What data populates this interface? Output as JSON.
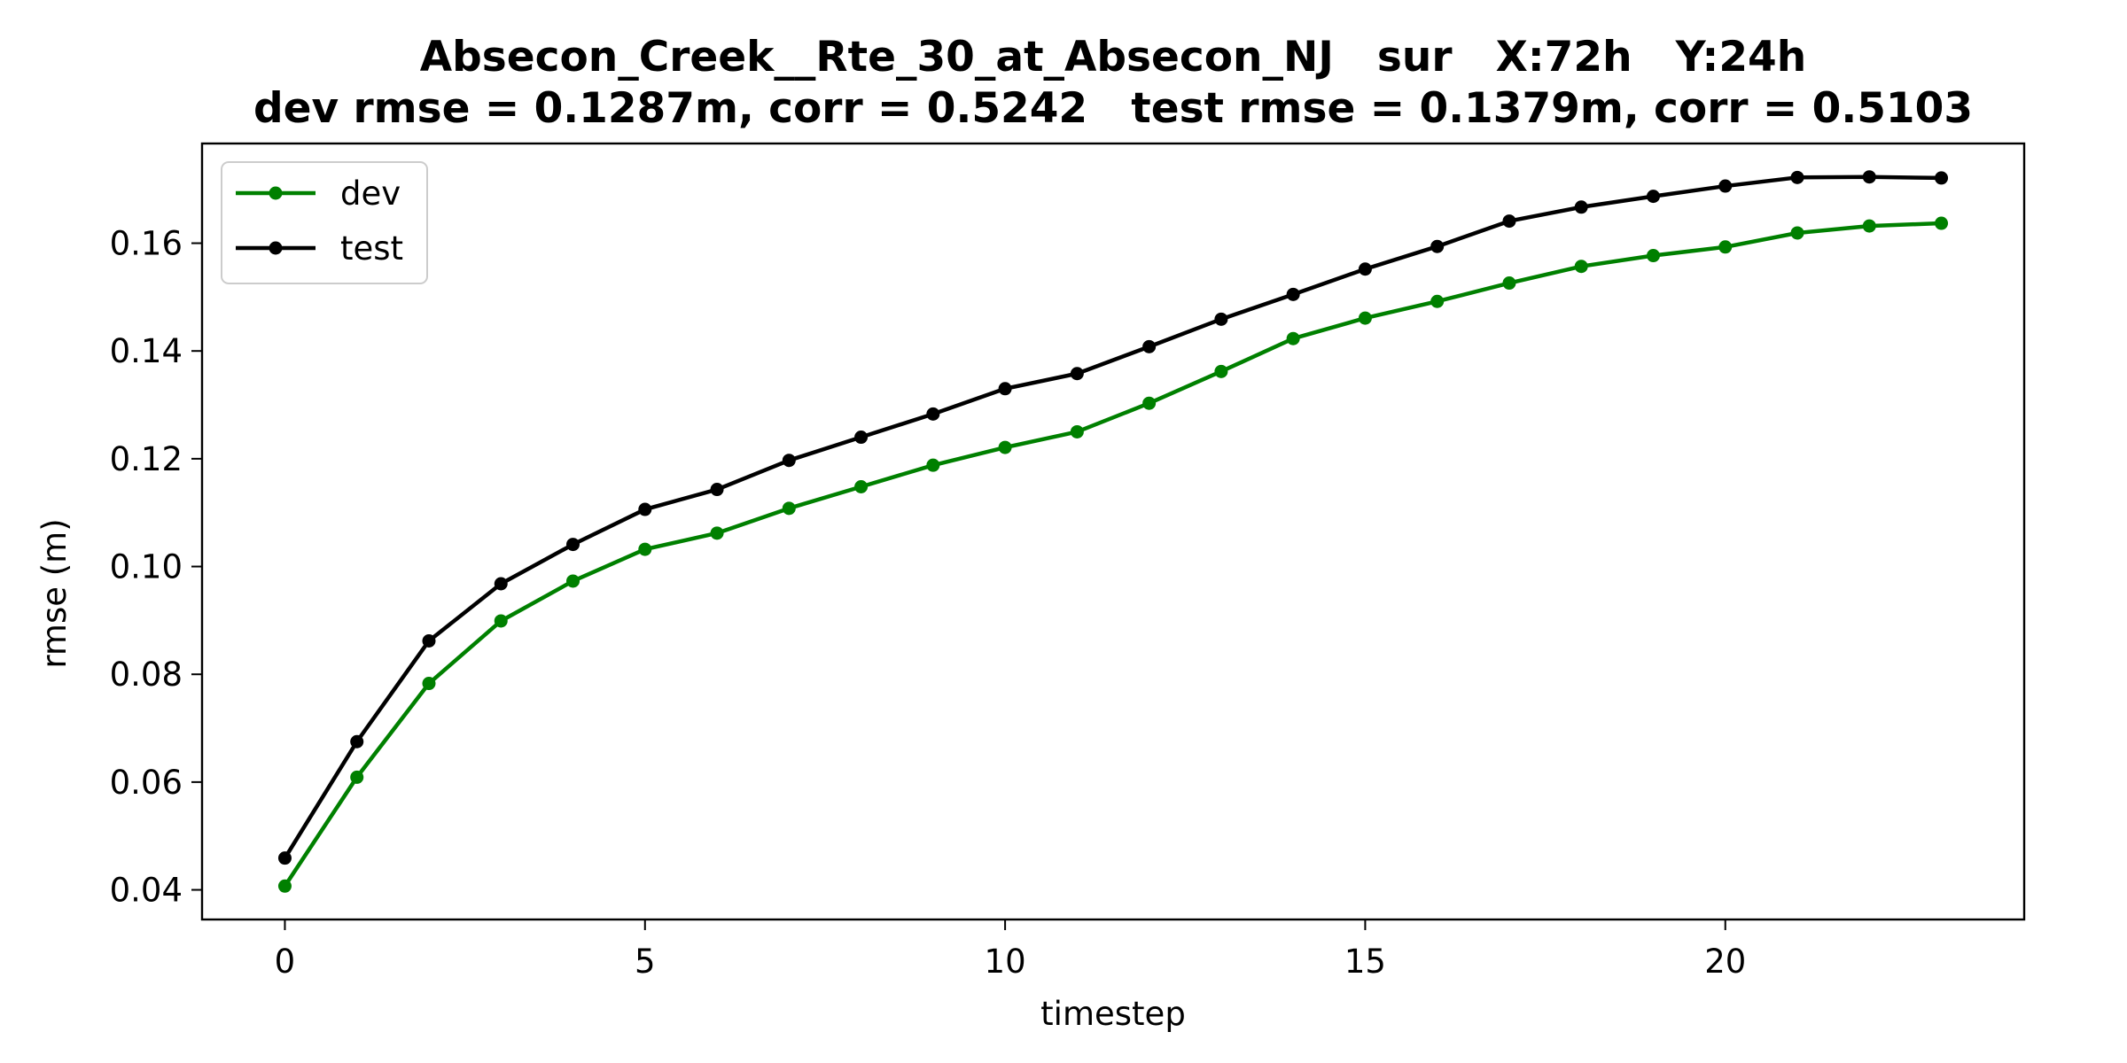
{
  "chart_data": {
    "type": "line",
    "title_line1": "Absecon_Creek__Rte_30_at_Absecon_NJ   sur   X:72h   Y:24h",
    "title_line2": "dev rmse = 0.1287m, corr = 0.5242   test rmse = 0.1379m, corr = 0.5103",
    "xlabel": "timestep",
    "ylabel": "rmse (m)",
    "xlim": [
      -1.15,
      24.15
    ],
    "ylim": [
      0.0345,
      0.1785
    ],
    "xticks": [
      0,
      5,
      10,
      15,
      20
    ],
    "xtick_labels": [
      "0",
      "5",
      "10",
      "15",
      "20"
    ],
    "yticks": [
      0.04,
      0.06,
      0.08,
      0.1,
      0.12,
      0.14,
      0.16
    ],
    "ytick_labels": [
      "0.04",
      "0.06",
      "0.08",
      "0.10",
      "0.12",
      "0.14",
      "0.16"
    ],
    "legend_position": "upper-left",
    "x": [
      0,
      1,
      2,
      3,
      4,
      5,
      6,
      7,
      8,
      9,
      10,
      11,
      12,
      13,
      14,
      15,
      16,
      17,
      18,
      19,
      20,
      21,
      22,
      23
    ],
    "series": [
      {
        "name": "dev",
        "color": "#008000",
        "values": [
          0.0407,
          0.0609,
          0.0783,
          0.0899,
          0.0973,
          0.1032,
          0.1062,
          0.1108,
          0.1148,
          0.1188,
          0.1221,
          0.125,
          0.1303,
          0.1362,
          0.1423,
          0.1461,
          0.1492,
          0.1526,
          0.1557,
          0.1577,
          0.1593,
          0.1619,
          0.1632,
          0.1637
        ]
      },
      {
        "name": "test",
        "color": "#000000",
        "values": [
          0.0459,
          0.0675,
          0.0862,
          0.0968,
          0.1041,
          0.1106,
          0.1143,
          0.1197,
          0.124,
          0.1283,
          0.133,
          0.1358,
          0.1408,
          0.1459,
          0.1505,
          0.1552,
          0.1594,
          0.1641,
          0.1667,
          0.1687,
          0.1706,
          0.1722,
          0.1723,
          0.1721
        ]
      }
    ]
  }
}
